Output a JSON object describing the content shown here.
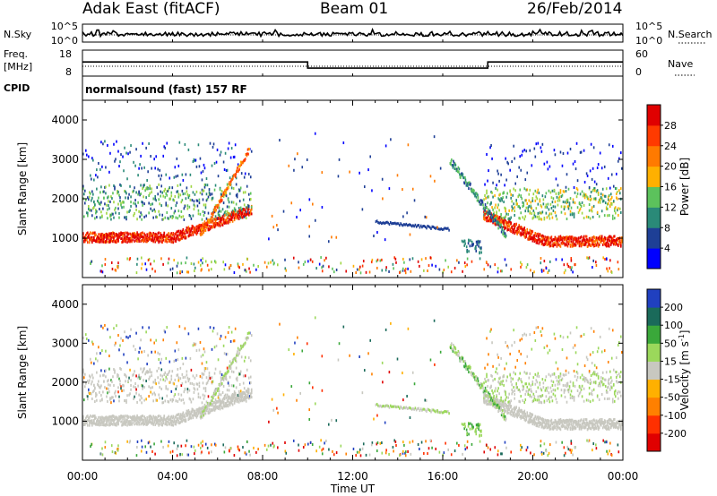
{
  "header": {
    "title": "Adak East (fitACF)",
    "beam": "Beam 01",
    "date": "26/Feb/2014"
  },
  "status_panels": {
    "nsky_label": "N.Sky",
    "nsky_ticks": [
      "10^5",
      "10^0"
    ],
    "nsearch_label": "N.Search",
    "nsearch_ticks": [
      "10^5",
      "10^0"
    ],
    "freq_label": "Freq.",
    "freq_unit": "[MHz]",
    "freq_ticks": [
      "18",
      "8"
    ],
    "nave_label": "Nave",
    "nave_ticks": [
      "60",
      "0"
    ],
    "cpid_label": "CPID",
    "cpid_text": "normalsound (fast) 157 RF"
  },
  "colors": {
    "power_scale": [
      "#0000ff",
      "#1e3f96",
      "#2a8a78",
      "#5cc25c",
      "#9fd642",
      "#ffb000",
      "#ff7a00",
      "#ff3a00",
      "#e00000"
    ],
    "velocity_scale": [
      "#2040c0",
      "#1a6a5a",
      "#3aa83a",
      "#9bd85b",
      "#c8c8c0",
      "#ffb000",
      "#ff8000",
      "#ff3000",
      "#e00000"
    ],
    "ground_scatter": "#c8c8c0"
  },
  "chart_data": [
    {
      "type": "heatmap",
      "name": "power",
      "xlabel": "",
      "ylabel": "Slant Range [km]",
      "x_ticks": [
        "00:00",
        "04:00",
        "08:00",
        "12:00",
        "16:00",
        "20:00",
        "00:00"
      ],
      "y_ticks": [
        "1000",
        "2000",
        "3000",
        "4000"
      ],
      "ylim": [
        0,
        4500
      ],
      "colorbar_label": "Power [dB]",
      "colorbar_ticks": [
        "4",
        "8",
        "12",
        "16",
        "20",
        "24",
        "28"
      ],
      "frequency_trace_mhz": [
        {
          "start_hour": 0,
          "end_hour": 10,
          "value": 14
        },
        {
          "start_hour": 10,
          "end_hour": 18,
          "value": 11
        },
        {
          "start_hour": 18,
          "end_hour": 24,
          "value": 14
        }
      ]
    },
    {
      "type": "heatmap",
      "name": "velocity",
      "xlabel": "Time UT",
      "ylabel": "Slant Range [km]",
      "x_ticks": [
        "00:00",
        "04:00",
        "08:00",
        "12:00",
        "16:00",
        "20:00",
        "00:00"
      ],
      "y_ticks": [
        "1000",
        "2000",
        "3000",
        "4000"
      ],
      "ylim": [
        0,
        4500
      ],
      "colorbar_label": "Velocity [m s^-1]",
      "colorbar_ticks": [
        "200",
        "100",
        "50",
        "15",
        "-15",
        "-50",
        "-100",
        "-200"
      ]
    }
  ]
}
